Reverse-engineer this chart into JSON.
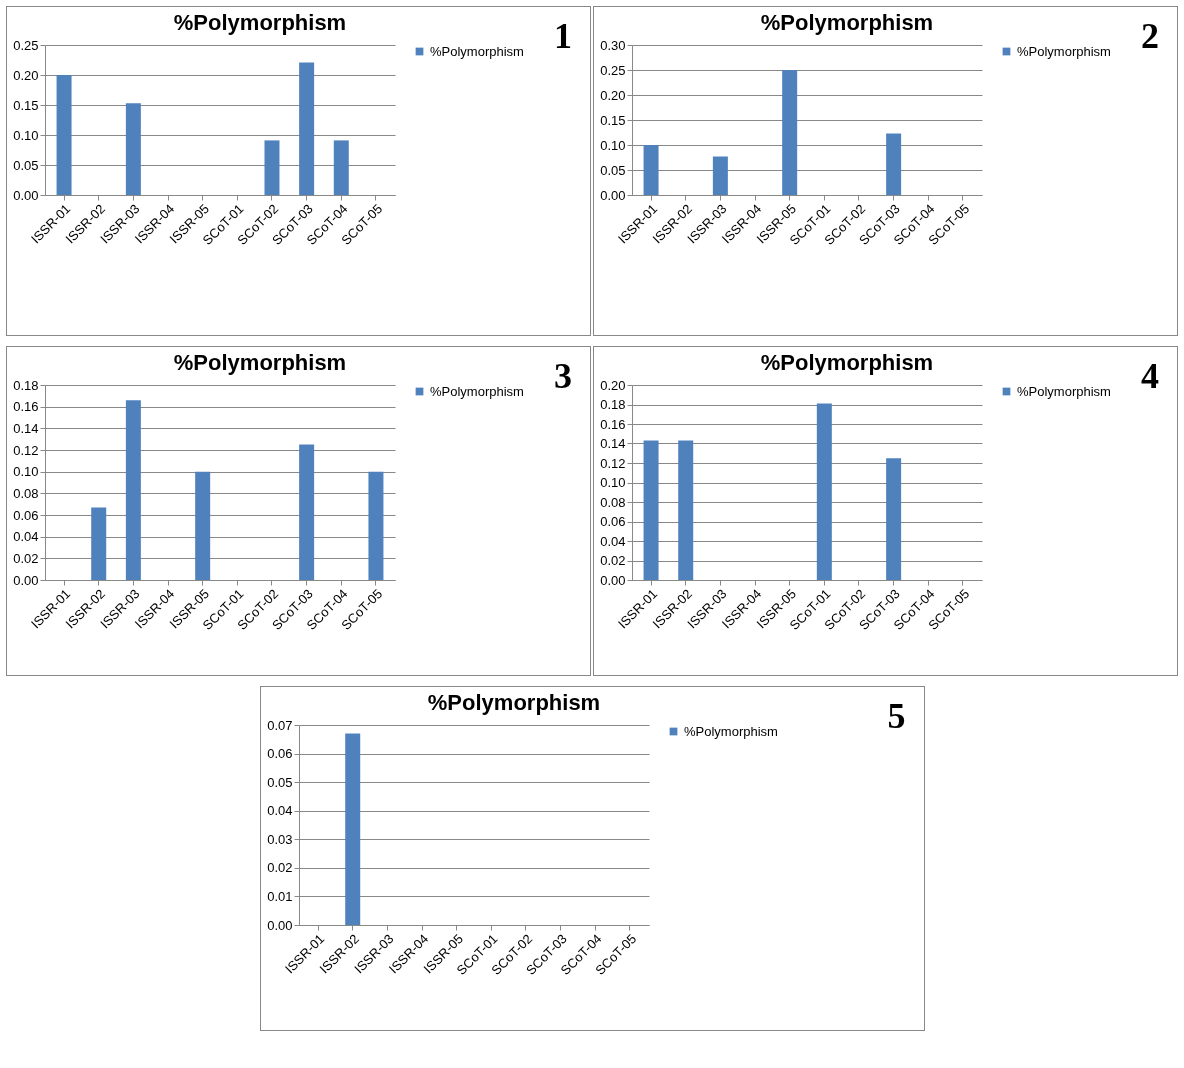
{
  "chart_data": [
    {
      "type": "bar",
      "title": "%Polymorphism",
      "categories": [
        "ISSR-01",
        "ISSR-02",
        "ISSR-03",
        "ISSR-04",
        "ISSR-05",
        "SCoT-01",
        "SCoT-02",
        "SCoT-03",
        "SCoT-04",
        "SCoT-05"
      ],
      "series": [
        {
          "name": "%Polymorphism",
          "color": "#4f81bd",
          "values": [
            0.2,
            0,
            0.153,
            0,
            0,
            0,
            0.091,
            0.221,
            0.091,
            0
          ]
        }
      ],
      "ylim": [
        0,
        0.25
      ],
      "yticks": [
        {
          "value": 0,
          "label": "0.00"
        },
        {
          "value": 0.05,
          "label": "0.05"
        },
        {
          "value": 0.1,
          "label": "0.10"
        },
        {
          "value": 0.15,
          "label": "0.15"
        },
        {
          "value": 0.2,
          "label": "0.20"
        },
        {
          "value": 0.25,
          "label": "0.25"
        }
      ],
      "grid": "y",
      "legend": "right",
      "annotations": [
        "1"
      ]
    },
    {
      "type": "bar",
      "title": "%Polymorphism",
      "categories": [
        "ISSR-01",
        "ISSR-02",
        "ISSR-03",
        "ISSR-04",
        "ISSR-05",
        "SCoT-01",
        "SCoT-02",
        "SCoT-03",
        "SCoT-04",
        "SCoT-05"
      ],
      "series": [
        {
          "name": "%Polymorphism",
          "color": "#4f81bd",
          "values": [
            0.1,
            0,
            0.077,
            0,
            0.25,
            0,
            0,
            0.123,
            0,
            0
          ]
        }
      ],
      "ylim": [
        0,
        0.3
      ],
      "yticks": [
        {
          "value": 0,
          "label": "0.00"
        },
        {
          "value": 0.05,
          "label": "0.05"
        },
        {
          "value": 0.1,
          "label": "0.10"
        },
        {
          "value": 0.15,
          "label": "0.15"
        },
        {
          "value": 0.2,
          "label": "0.20"
        },
        {
          "value": 0.25,
          "label": "0.25"
        },
        {
          "value": 0.3,
          "label": "0.30"
        }
      ],
      "grid": "y",
      "legend": "right",
      "annotations": [
        "2"
      ]
    },
    {
      "type": "bar",
      "title": "%Polymorphism",
      "categories": [
        "ISSR-01",
        "ISSR-02",
        "ISSR-03",
        "ISSR-04",
        "ISSR-05",
        "SCoT-01",
        "SCoT-02",
        "SCoT-03",
        "SCoT-04",
        "SCoT-05"
      ],
      "series": [
        {
          "name": "%Polymorphism",
          "color": "#4f81bd",
          "values": [
            0,
            0.067,
            0.166,
            0,
            0.1,
            0,
            0,
            0.125,
            0,
            0.1
          ]
        }
      ],
      "ylim": [
        0,
        0.18
      ],
      "yticks": [
        {
          "value": 0,
          "label": "0.00"
        },
        {
          "value": 0.02,
          "label": "0.02"
        },
        {
          "value": 0.04,
          "label": "0.04"
        },
        {
          "value": 0.06,
          "label": "0.06"
        },
        {
          "value": 0.08,
          "label": "0.08"
        },
        {
          "value": 0.1,
          "label": "0.10"
        },
        {
          "value": 0.12,
          "label": "0.12"
        },
        {
          "value": 0.14,
          "label": "0.14"
        },
        {
          "value": 0.16,
          "label": "0.16"
        },
        {
          "value": 0.18,
          "label": "0.18"
        }
      ],
      "grid": "y",
      "legend": "right",
      "annotations": [
        "3"
      ]
    },
    {
      "type": "bar",
      "title": "%Polymorphism",
      "categories": [
        "ISSR-01",
        "ISSR-02",
        "ISSR-03",
        "ISSR-04",
        "ISSR-05",
        "SCoT-01",
        "SCoT-02",
        "SCoT-03",
        "SCoT-04",
        "SCoT-05"
      ],
      "series": [
        {
          "name": "%Polymorphism",
          "color": "#4f81bd",
          "values": [
            0.143,
            0.143,
            0,
            0,
            0,
            0.181,
            0,
            0.125,
            0,
            0
          ]
        }
      ],
      "ylim": [
        0,
        0.2
      ],
      "yticks": [
        {
          "value": 0,
          "label": "0.00"
        },
        {
          "value": 0.02,
          "label": "0.02"
        },
        {
          "value": 0.04,
          "label": "0.04"
        },
        {
          "value": 0.06,
          "label": "0.06"
        },
        {
          "value": 0.08,
          "label": "0.08"
        },
        {
          "value": 0.1,
          "label": "0.10"
        },
        {
          "value": 0.12,
          "label": "0.12"
        },
        {
          "value": 0.14,
          "label": "0.14"
        },
        {
          "value": 0.16,
          "label": "0.16"
        },
        {
          "value": 0.18,
          "label": "0.18"
        },
        {
          "value": 0.2,
          "label": "0.20"
        }
      ],
      "grid": "y",
      "legend": "right",
      "annotations": [
        "4"
      ]
    },
    {
      "type": "bar",
      "title": "%Polymorphism",
      "categories": [
        "ISSR-01",
        "ISSR-02",
        "ISSR-03",
        "ISSR-04",
        "ISSR-05",
        "SCoT-01",
        "SCoT-02",
        "SCoT-03",
        "SCoT-04",
        "SCoT-05"
      ],
      "series": [
        {
          "name": "%Polymorphism",
          "color": "#4f81bd",
          "values": [
            0,
            0.067,
            0,
            0,
            0,
            0,
            0,
            0,
            0,
            0
          ]
        }
      ],
      "ylim": [
        0,
        0.07
      ],
      "yticks": [
        {
          "value": 0,
          "label": "0.00"
        },
        {
          "value": 0.01,
          "label": "0.01"
        },
        {
          "value": 0.02,
          "label": "0.02"
        },
        {
          "value": 0.03,
          "label": "0.03"
        },
        {
          "value": 0.04,
          "label": "0.04"
        },
        {
          "value": 0.05,
          "label": "0.05"
        },
        {
          "value": 0.06,
          "label": "0.06"
        },
        {
          "value": 0.07,
          "label": "0.07"
        }
      ],
      "grid": "y",
      "legend": "right",
      "annotations": [
        "5"
      ]
    }
  ]
}
